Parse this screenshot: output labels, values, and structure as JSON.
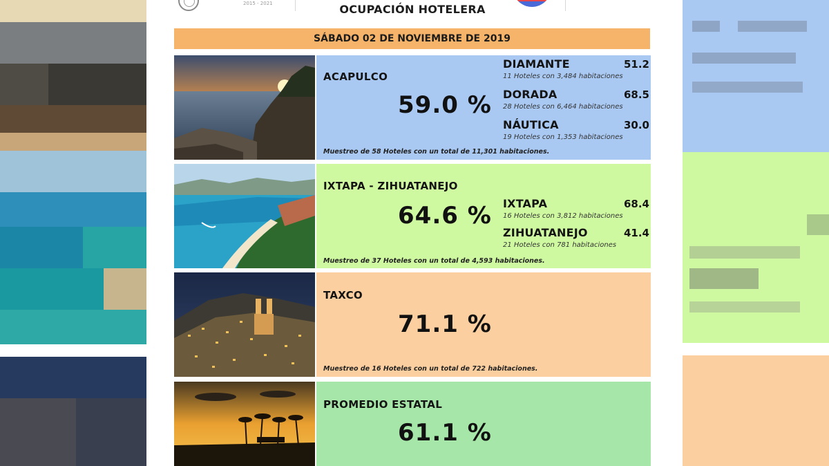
{
  "header": {
    "title": "OCUPACIÓN HOTELERA",
    "years": "2015 - 2021"
  },
  "date_banner": "SÁBADO 02 DE NOVIEMBRE DE 2019",
  "colors": {
    "acapulco_panel": "#a9c9f3",
    "ixtapa_panel": "#cff9a1",
    "taxco_panel": "#fbcf9f",
    "promedio_panel": "#a6e6a8",
    "date_bar": "#f6b46a"
  },
  "destinations": [
    {
      "name": "ACAPULCO",
      "occupancy": "59.0 %",
      "zones": [
        {
          "name": "DIAMANTE",
          "value": "51.2",
          "detail": "11 Hoteles con 3,484 habitaciones"
        },
        {
          "name": "DORADA",
          "value": "68.5",
          "detail": "28 Hoteles con 6,464 habitaciones"
        },
        {
          "name": "NÁUTICA",
          "value": "30.0",
          "detail": "19 Hoteles con 1,353 habitaciones"
        }
      ],
      "sample": "Muestreo de 58 Hoteles con un total de 11,301 habitaciones.",
      "photo_icon": "coastal-sunset-photo"
    },
    {
      "name": "IXTAPA - ZIHUATANEJO",
      "occupancy": "64.6 %",
      "zones": [
        {
          "name": "IXTAPA",
          "value": "68.4",
          "detail": "16 Hoteles con 3,812 habitaciones"
        },
        {
          "name": "ZIHUATANEJO",
          "value": "41.4",
          "detail": "21 Hoteles con 781 habitaciones"
        }
      ],
      "sample": "Muestreo de 37 Hoteles con un total de 4,593 habitaciones.",
      "photo_icon": "bay-aerial-photo"
    },
    {
      "name": "TAXCO",
      "occupancy": "71.1 %",
      "zones": [],
      "sample": "Muestreo de 16 Hoteles con un total de 722 habitaciones.",
      "photo_icon": "city-night-photo"
    },
    {
      "name": "PROMEDIO ESTATAL",
      "occupancy": "61.1 %",
      "zones": [],
      "sample": "",
      "photo_icon": "palm-sunset-photo"
    }
  ]
}
